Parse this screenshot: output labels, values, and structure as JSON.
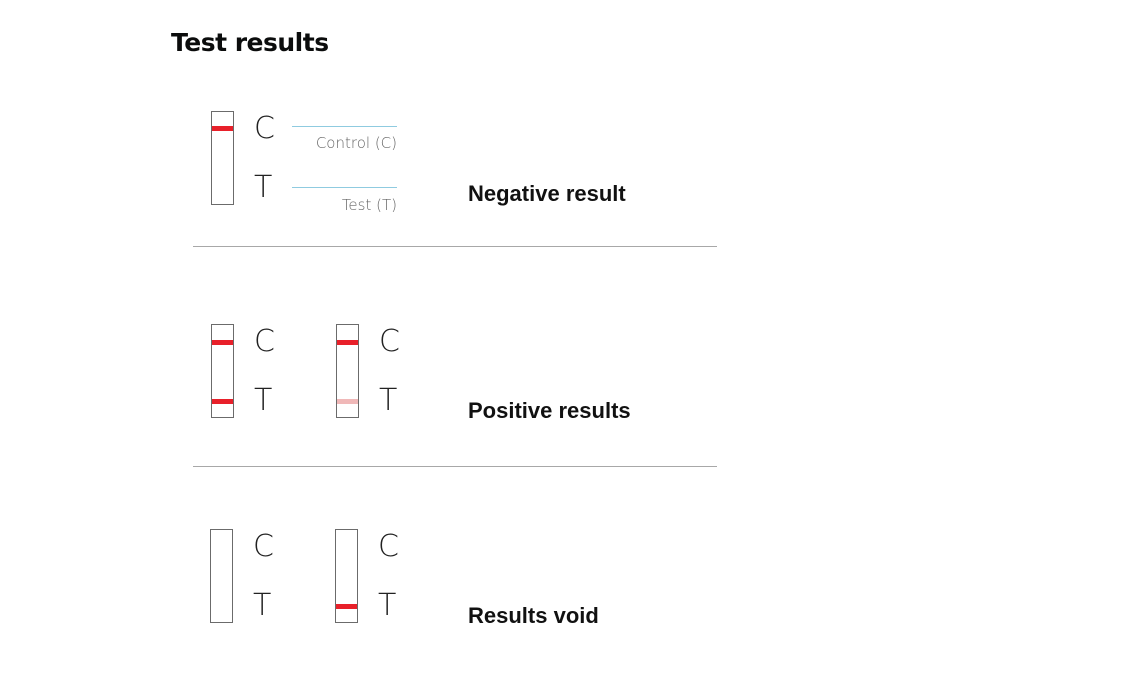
{
  "title": "Test results",
  "sections": [
    {
      "label": "Negative result",
      "strips": [
        {
          "control_line": "strong",
          "test_line": "none"
        }
      ],
      "legend": {
        "control": "Control (C)",
        "test": "Test (T)"
      }
    },
    {
      "label": "Positive results",
      "strips": [
        {
          "control_line": "strong",
          "test_line": "strong"
        },
        {
          "control_line": "strong",
          "test_line": "faint"
        }
      ]
    },
    {
      "label": "Results void",
      "strips": [
        {
          "control_line": "none",
          "test_line": "none"
        },
        {
          "control_line": "none",
          "test_line": "strong"
        }
      ]
    }
  ],
  "letters": {
    "control": "C",
    "test": "T"
  },
  "colors": {
    "line": "#e8202a",
    "faint_line": "#f0b8b8",
    "legend_line": "#8fcbe0"
  }
}
